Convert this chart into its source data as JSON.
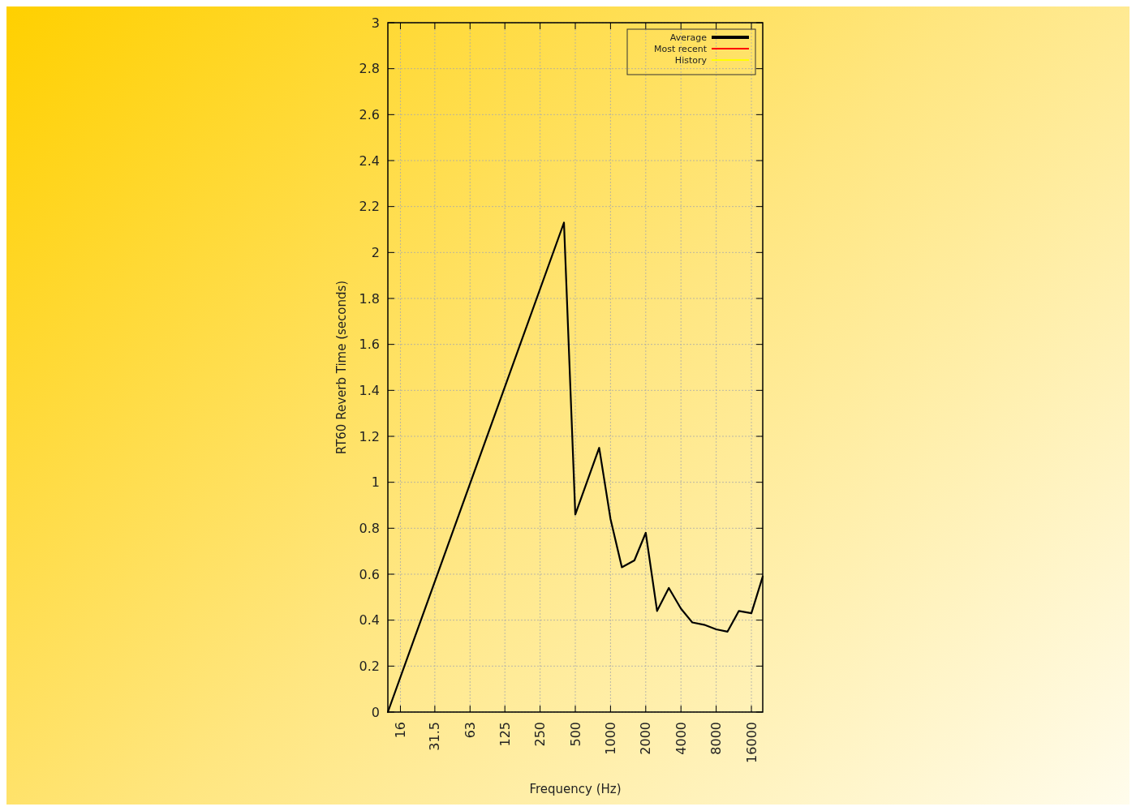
{
  "chart_data": {
    "type": "line",
    "xlabel": "Frequency (Hz)",
    "ylabel": "RT60 Reverb Time (seconds)",
    "log": "x",
    "x": [
      12.5,
      400,
      500,
      800,
      1000,
      1250,
      1600,
      2000,
      2500,
      3150,
      4000,
      5000,
      6300,
      8000,
      10000,
      12500,
      16000,
      20000
    ],
    "series": [
      {
        "name": "Average",
        "color": "#000000",
        "values": [
          0,
          2.13,
          0.86,
          1.15,
          0.84,
          0.63,
          0.66,
          0.78,
          0.44,
          0.54,
          0.45,
          0.39,
          0.38,
          0.36,
          0.35,
          0.44,
          0.43,
          0.59
        ]
      },
      {
        "name": "Most recent",
        "color": "#ff0000",
        "values": [
          null,
          null,
          null,
          null,
          null,
          null,
          null,
          null,
          null,
          null,
          null,
          null,
          null,
          null,
          null,
          null,
          null,
          null
        ]
      },
      {
        "name": "History",
        "color": "#ffff00",
        "values": [
          null,
          null,
          null,
          null,
          null,
          null,
          null,
          null,
          null,
          null,
          null,
          null,
          null,
          null,
          null,
          null,
          null,
          null
        ]
      }
    ],
    "xlim": [
      12.5,
      20000
    ],
    "xticks": [
      16,
      31.5,
      63,
      125,
      250,
      500,
      1000,
      2000,
      4000,
      8000,
      16000
    ],
    "ylim": [
      0,
      3
    ],
    "yticks": [
      0,
      0.2,
      0.4,
      0.6,
      0.8,
      1,
      1.2,
      1.4,
      1.6,
      1.8,
      2,
      2.2,
      2.4,
      2.6,
      2.8,
      3
    ],
    "grid": true,
    "legend": "top right",
    "line_style": "solid",
    "marker": "none"
  }
}
